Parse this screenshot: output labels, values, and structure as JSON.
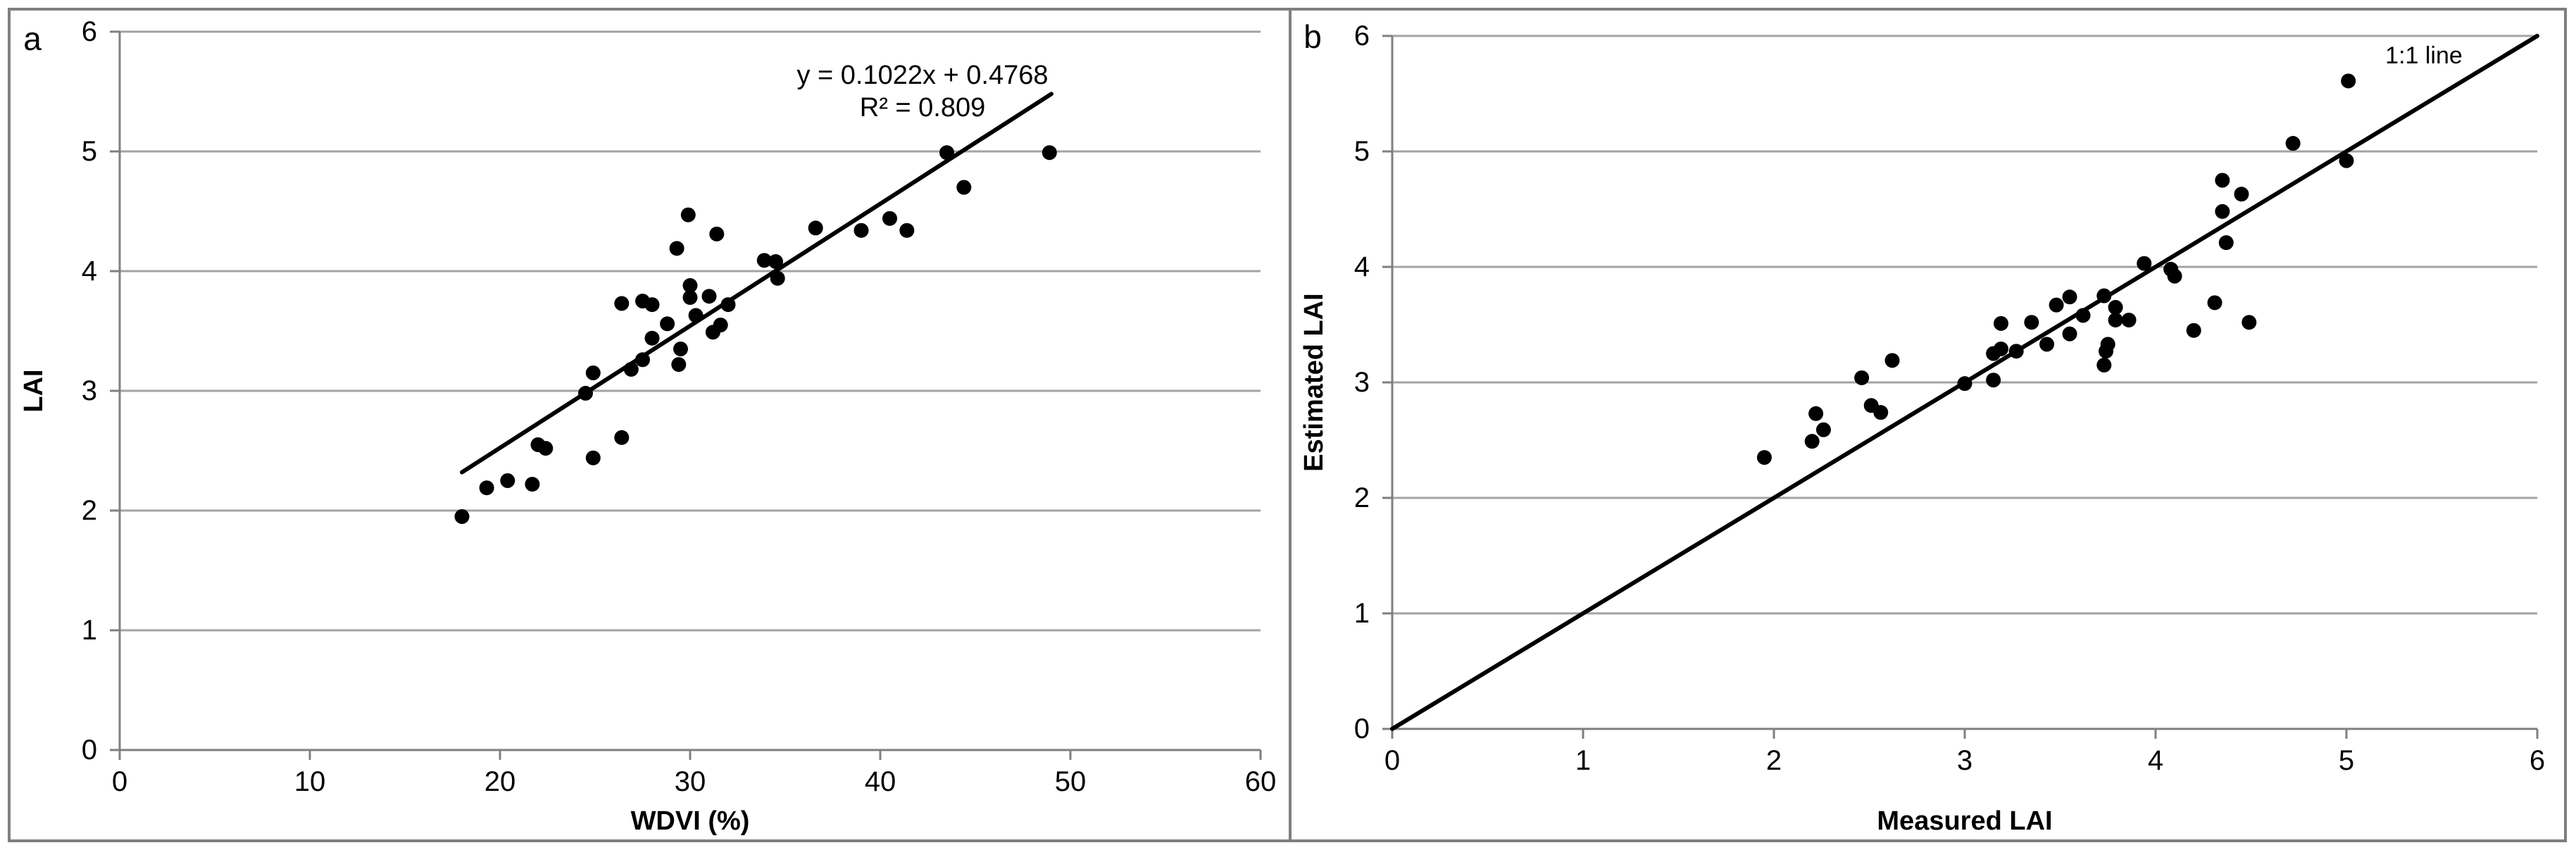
{
  "figure": {
    "bg": "#ffffff",
    "border_color": "#7f7f7f",
    "gridline_color": "#a3a3a3",
    "axis_color": "#7f7f7f",
    "point_color": "#000000",
    "line_color": "#000000"
  },
  "chart_data": [
    {
      "type": "scatter",
      "panel_label": "a",
      "xlabel": "WDVI (%)",
      "ylabel": "LAI",
      "xlim": [
        0,
        60
      ],
      "ylim": [
        0,
        6
      ],
      "xticks": [
        0,
        10,
        20,
        30,
        40,
        50,
        60
      ],
      "yticks": [
        0,
        1,
        2,
        3,
        4,
        5,
        6
      ],
      "grid": "horizontal",
      "legend_position": "none",
      "annotations": {
        "equation": "y = 0.1022x + 0.4768",
        "r_squared": "R² = 0.809"
      },
      "trend_line": {
        "x1": 18,
        "y1": 2.32,
        "x2": 49,
        "y2": 5.48
      },
      "points": [
        [
          18.0,
          1.95
        ],
        [
          19.3,
          2.19
        ],
        [
          20.4,
          2.25
        ],
        [
          21.7,
          2.22
        ],
        [
          22.0,
          2.55
        ],
        [
          22.4,
          2.52
        ],
        [
          24.9,
          2.44
        ],
        [
          26.4,
          2.61
        ],
        [
          24.5,
          2.98
        ],
        [
          24.9,
          3.15
        ],
        [
          26.9,
          3.18
        ],
        [
          27.5,
          3.26
        ],
        [
          28.0,
          3.44
        ],
        [
          29.5,
          3.35
        ],
        [
          29.4,
          3.22
        ],
        [
          26.4,
          3.73
        ],
        [
          27.5,
          3.75
        ],
        [
          28.0,
          3.72
        ],
        [
          30.0,
          3.88
        ],
        [
          30.0,
          3.78
        ],
        [
          31.0,
          3.79
        ],
        [
          32.0,
          3.72
        ],
        [
          30.3,
          3.63
        ],
        [
          28.8,
          3.56
        ],
        [
          31.2,
          3.49
        ],
        [
          31.6,
          3.55
        ],
        [
          29.3,
          4.19
        ],
        [
          29.9,
          4.47
        ],
        [
          31.4,
          4.31
        ],
        [
          33.9,
          4.09
        ],
        [
          34.5,
          4.08
        ],
        [
          34.6,
          3.94
        ],
        [
          36.6,
          4.36
        ],
        [
          39.0,
          4.34
        ],
        [
          40.5,
          4.44
        ],
        [
          41.4,
          4.34
        ],
        [
          43.5,
          4.99
        ],
        [
          44.4,
          4.7
        ],
        [
          48.9,
          4.99
        ]
      ]
    },
    {
      "type": "scatter",
      "panel_label": "b",
      "xlabel": "Measured LAI",
      "ylabel": "Estimated LAI",
      "xlim": [
        0,
        6
      ],
      "ylim": [
        0,
        6
      ],
      "xticks": [
        0,
        1,
        2,
        3,
        4,
        5,
        6
      ],
      "yticks": [
        0,
        1,
        2,
        3,
        4,
        5,
        6
      ],
      "grid": "horizontal",
      "legend_position": "none",
      "annotations": {
        "line_label": "1:1 line"
      },
      "identity_line": {
        "x1": 0,
        "y1": 0,
        "x2": 6,
        "y2": 6
      },
      "points": [
        [
          1.95,
          2.35
        ],
        [
          2.2,
          2.49
        ],
        [
          2.26,
          2.59
        ],
        [
          2.22,
          2.73
        ],
        [
          2.51,
          2.8
        ],
        [
          2.56,
          2.74
        ],
        [
          2.46,
          3.04
        ],
        [
          2.62,
          3.19
        ],
        [
          3.0,
          2.99
        ],
        [
          3.15,
          3.02
        ],
        [
          3.15,
          3.25
        ],
        [
          3.19,
          3.29
        ],
        [
          3.27,
          3.27
        ],
        [
          3.19,
          3.51
        ],
        [
          3.35,
          3.52
        ],
        [
          3.48,
          3.67
        ],
        [
          3.55,
          3.74
        ],
        [
          3.43,
          3.33
        ],
        [
          3.55,
          3.42
        ],
        [
          3.62,
          3.58
        ],
        [
          3.73,
          3.75
        ],
        [
          3.79,
          3.65
        ],
        [
          3.79,
          3.54
        ],
        [
          3.86,
          3.54
        ],
        [
          3.75,
          3.33
        ],
        [
          3.74,
          3.27
        ],
        [
          3.73,
          3.15
        ],
        [
          3.94,
          4.03
        ],
        [
          4.08,
          3.98
        ],
        [
          4.1,
          3.92
        ],
        [
          4.37,
          4.21
        ],
        [
          4.31,
          3.69
        ],
        [
          4.2,
          3.45
        ],
        [
          4.49,
          3.52
        ],
        [
          4.35,
          4.75
        ],
        [
          4.35,
          4.48
        ],
        [
          4.45,
          4.63
        ],
        [
          4.72,
          5.07
        ],
        [
          5.0,
          4.92
        ],
        [
          5.01,
          5.61
        ]
      ]
    }
  ]
}
